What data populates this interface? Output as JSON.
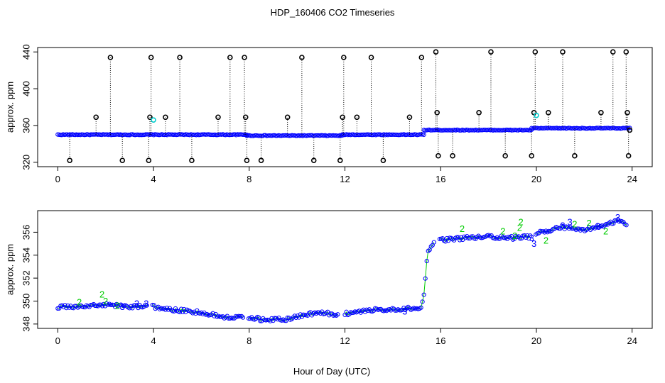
{
  "figure": {
    "title": "HDP_160406  CO2 Timeseries",
    "xlabel": "Hour of Day (UTC)"
  },
  "colors": {
    "series_main": "#0000ff",
    "outlier": "#000000",
    "flag2": "#00cc00",
    "flag_cyan": "#00cccc"
  },
  "chart_data": [
    {
      "type": "scatter",
      "panel": "top",
      "ylabel": "approx. ppm",
      "xlim": [
        0,
        24
      ],
      "ylim": [
        320,
        440
      ],
      "xticks": [
        "0",
        "4",
        "8",
        "12",
        "16",
        "20",
        "24"
      ],
      "xtick_values": [
        0,
        4,
        8,
        12,
        16,
        20,
        24
      ],
      "yticks": [
        "320",
        "360",
        "400",
        "440"
      ],
      "ytick_values": [
        320,
        360,
        400,
        440
      ],
      "grid": false,
      "baseline_segments": [
        {
          "x_start": 0.0,
          "x_end": 3.9,
          "y": 350
        },
        {
          "x_start": 3.9,
          "x_end": 7.9,
          "y": 350
        },
        {
          "x_start": 7.9,
          "x_end": 11.9,
          "y": 349
        },
        {
          "x_start": 11.9,
          "x_end": 15.3,
          "y": 350
        },
        {
          "x_start": 15.3,
          "x_end": 19.8,
          "y": 355
        },
        {
          "x_start": 19.8,
          "x_end": 23.9,
          "y": 357
        }
      ],
      "outliers": [
        {
          "x": 0.5,
          "y": 322
        },
        {
          "x": 1.6,
          "y": 369
        },
        {
          "x": 2.2,
          "y": 434
        },
        {
          "x": 2.7,
          "y": 322
        },
        {
          "x": 3.8,
          "y": 322
        },
        {
          "x": 3.85,
          "y": 369
        },
        {
          "x": 3.9,
          "y": 434
        },
        {
          "x": 4.5,
          "y": 369
        },
        {
          "x": 5.1,
          "y": 434
        },
        {
          "x": 5.6,
          "y": 322
        },
        {
          "x": 6.7,
          "y": 369
        },
        {
          "x": 7.2,
          "y": 434
        },
        {
          "x": 7.8,
          "y": 434
        },
        {
          "x": 7.85,
          "y": 369
        },
        {
          "x": 7.9,
          "y": 322
        },
        {
          "x": 8.5,
          "y": 322
        },
        {
          "x": 9.6,
          "y": 369
        },
        {
          "x": 10.2,
          "y": 434
        },
        {
          "x": 10.7,
          "y": 322
        },
        {
          "x": 11.8,
          "y": 322
        },
        {
          "x": 11.9,
          "y": 369
        },
        {
          "x": 11.95,
          "y": 434
        },
        {
          "x": 12.5,
          "y": 369
        },
        {
          "x": 13.1,
          "y": 434
        },
        {
          "x": 13.6,
          "y": 322
        },
        {
          "x": 14.7,
          "y": 369
        },
        {
          "x": 15.2,
          "y": 434
        },
        {
          "x": 15.8,
          "y": 440
        },
        {
          "x": 15.85,
          "y": 374
        },
        {
          "x": 15.9,
          "y": 327
        },
        {
          "x": 16.5,
          "y": 327
        },
        {
          "x": 17.6,
          "y": 374
        },
        {
          "x": 18.1,
          "y": 440
        },
        {
          "x": 18.7,
          "y": 327
        },
        {
          "x": 19.8,
          "y": 327
        },
        {
          "x": 19.9,
          "y": 374
        },
        {
          "x": 19.95,
          "y": 440
        },
        {
          "x": 20.5,
          "y": 374
        },
        {
          "x": 21.1,
          "y": 440
        },
        {
          "x": 21.6,
          "y": 327
        },
        {
          "x": 22.7,
          "y": 374
        },
        {
          "x": 23.2,
          "y": 440
        },
        {
          "x": 23.75,
          "y": 440
        },
        {
          "x": 23.8,
          "y": 374
        },
        {
          "x": 23.85,
          "y": 327
        },
        {
          "x": 23.9,
          "y": 355
        }
      ],
      "cyan_points": [
        {
          "x": 4.0,
          "y": 366
        },
        {
          "x": 20.0,
          "y": 371
        }
      ]
    },
    {
      "type": "scatter",
      "panel": "bottom",
      "ylabel": "approx. ppm",
      "xlabel": "Hour of Day (UTC)",
      "xlim": [
        0,
        24
      ],
      "ylim": [
        348,
        357.5
      ],
      "xticks": [
        "0",
        "4",
        "8",
        "12",
        "16",
        "20",
        "24"
      ],
      "xtick_values": [
        0,
        4,
        8,
        12,
        16,
        20,
        24
      ],
      "yticks": [
        "348",
        "350",
        "352",
        "354",
        "356"
      ],
      "ytick_values": [
        348,
        350,
        352,
        354,
        356
      ],
      "grid": false,
      "profile": [
        {
          "x": 0.0,
          "y": 349.5
        },
        {
          "x": 1.0,
          "y": 349.5
        },
        {
          "x": 2.0,
          "y": 349.7
        },
        {
          "x": 3.0,
          "y": 349.5
        },
        {
          "x": 3.7,
          "y": 349.6
        },
        {
          "x": 4.0,
          "y": 349.5
        },
        {
          "x": 5.0,
          "y": 349.2
        },
        {
          "x": 6.0,
          "y": 349.0
        },
        {
          "x": 7.0,
          "y": 348.6
        },
        {
          "x": 7.8,
          "y": 348.7
        },
        {
          "x": 8.5,
          "y": 348.4
        },
        {
          "x": 9.5,
          "y": 348.4
        },
        {
          "x": 10.3,
          "y": 348.8
        },
        {
          "x": 11.0,
          "y": 349.0
        },
        {
          "x": 11.7,
          "y": 348.8
        },
        {
          "x": 12.0,
          "y": 348.9
        },
        {
          "x": 13.0,
          "y": 349.2
        },
        {
          "x": 14.0,
          "y": 349.3
        },
        {
          "x": 15.2,
          "y": 349.4
        },
        {
          "x": 15.3,
          "y": 350.5
        },
        {
          "x": 15.45,
          "y": 354.2
        },
        {
          "x": 15.7,
          "y": 355.0
        },
        {
          "x": 16.0,
          "y": 355.3
        },
        {
          "x": 17.0,
          "y": 355.5
        },
        {
          "x": 18.0,
          "y": 355.6
        },
        {
          "x": 19.0,
          "y": 355.5
        },
        {
          "x": 19.7,
          "y": 355.6
        },
        {
          "x": 20.0,
          "y": 355.9
        },
        {
          "x": 21.0,
          "y": 356.4
        },
        {
          "x": 22.0,
          "y": 356.2
        },
        {
          "x": 23.0,
          "y": 356.7
        },
        {
          "x": 23.5,
          "y": 357.1
        },
        {
          "x": 23.8,
          "y": 356.6
        }
      ],
      "flag2_points": [
        {
          "x": 0.9,
          "y": 349.9
        },
        {
          "x": 1.85,
          "y": 350.6
        },
        {
          "x": 2.0,
          "y": 350.0
        },
        {
          "x": 2.5,
          "y": 349.6
        },
        {
          "x": 16.9,
          "y": 356.3
        },
        {
          "x": 18.6,
          "y": 356.1
        },
        {
          "x": 19.1,
          "y": 355.7
        },
        {
          "x": 19.3,
          "y": 356.4
        },
        {
          "x": 19.35,
          "y": 356.9
        },
        {
          "x": 20.4,
          "y": 355.3
        },
        {
          "x": 21.6,
          "y": 356.7
        },
        {
          "x": 22.2,
          "y": 356.8
        },
        {
          "x": 22.9,
          "y": 356.1
        }
      ],
      "flag3_points": [
        {
          "x": 2.7,
          "y": 349.5
        },
        {
          "x": 3.3,
          "y": 349.8
        },
        {
          "x": 3.7,
          "y": 349.8
        },
        {
          "x": 14.5,
          "y": 349.1
        },
        {
          "x": 19.8,
          "y": 355.5
        },
        {
          "x": 19.9,
          "y": 355.0
        },
        {
          "x": 21.1,
          "y": 356.6
        },
        {
          "x": 21.4,
          "y": 356.9
        },
        {
          "x": 22.6,
          "y": 356.5
        },
        {
          "x": 23.4,
          "y": 357.3
        }
      ]
    }
  ]
}
